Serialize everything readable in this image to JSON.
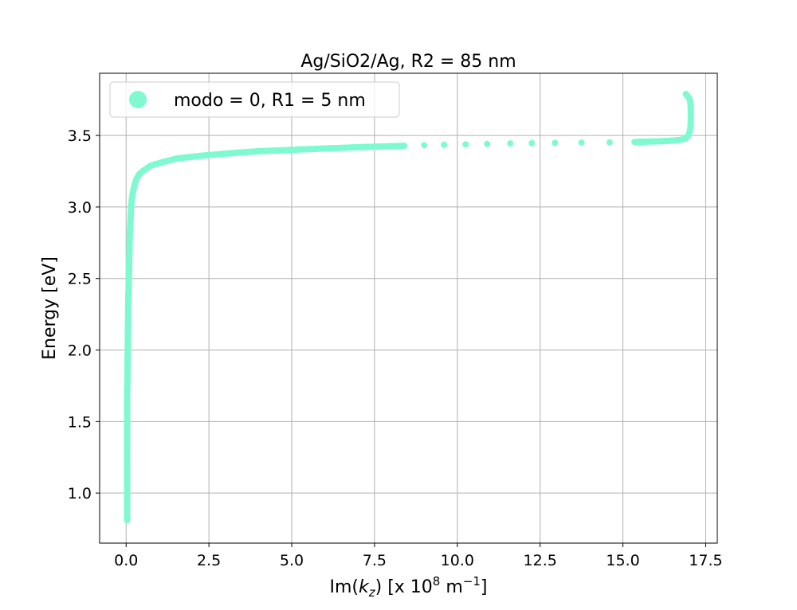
{
  "chart_data": {
    "type": "scatter",
    "title": "Ag/SiO2/Ag, R2 = 85 nm",
    "xlabel_parts": {
      "prefix": "Im(",
      "k": "k",
      "sub": "z",
      "mid": ") [x 10",
      "exp": "8",
      "unit": " m",
      "unit_exp": "−1",
      "suffix": "]"
    },
    "ylabel": "Energy [eV]",
    "xlim": [
      -0.8,
      17.85
    ],
    "ylim": [
      0.65,
      3.935
    ],
    "xticks": [
      0.0,
      2.5,
      5.0,
      7.5,
      10.0,
      12.5,
      15.0,
      17.5
    ],
    "xtick_labels": [
      "0.0",
      "2.5",
      "5.0",
      "7.5",
      "10.0",
      "12.5",
      "15.0",
      "17.5"
    ],
    "yticks": [
      1.0,
      1.5,
      2.0,
      2.5,
      3.0,
      3.5
    ],
    "ytick_labels": [
      "1.0",
      "1.5",
      "2.0",
      "2.5",
      "3.0",
      "3.5"
    ],
    "grid": true,
    "legend_position": "upper-left",
    "series": [
      {
        "name": "modo = 0, R1 = 5 nm",
        "color": "#7ffad0",
        "points": [
          [
            0.03,
            0.81
          ],
          [
            0.03,
            0.9
          ],
          [
            0.03,
            1.0
          ],
          [
            0.03,
            1.1
          ],
          [
            0.03,
            1.2
          ],
          [
            0.03,
            1.3
          ],
          [
            0.03,
            1.4
          ],
          [
            0.03,
            1.5
          ],
          [
            0.03,
            1.6
          ],
          [
            0.03,
            1.7
          ],
          [
            0.04,
            1.8
          ],
          [
            0.04,
            1.9
          ],
          [
            0.05,
            2.0
          ],
          [
            0.05,
            2.1
          ],
          [
            0.06,
            2.2
          ],
          [
            0.06,
            2.3
          ],
          [
            0.07,
            2.4
          ],
          [
            0.08,
            2.5
          ],
          [
            0.09,
            2.6
          ],
          [
            0.1,
            2.7
          ],
          [
            0.11,
            2.8
          ],
          [
            0.13,
            2.9
          ],
          [
            0.15,
            3.0
          ],
          [
            0.18,
            3.07
          ],
          [
            0.22,
            3.12
          ],
          [
            0.26,
            3.16
          ],
          [
            0.32,
            3.2
          ],
          [
            0.4,
            3.23
          ],
          [
            0.5,
            3.25
          ],
          [
            0.62,
            3.27
          ],
          [
            0.75,
            3.29
          ],
          [
            0.9,
            3.3
          ],
          [
            1.05,
            3.31
          ],
          [
            1.2,
            3.32
          ],
          [
            1.38,
            3.33
          ],
          [
            1.55,
            3.34
          ],
          [
            1.75,
            3.345
          ],
          [
            1.95,
            3.35
          ],
          [
            2.15,
            3.355
          ],
          [
            2.35,
            3.36
          ],
          [
            2.6,
            3.365
          ],
          [
            2.85,
            3.37
          ],
          [
            3.1,
            3.375
          ],
          [
            3.4,
            3.38
          ],
          [
            3.7,
            3.385
          ],
          [
            4.0,
            3.39
          ],
          [
            4.35,
            3.393
          ],
          [
            4.7,
            3.396
          ],
          [
            5.05,
            3.4
          ],
          [
            5.45,
            3.404
          ],
          [
            5.9,
            3.408
          ],
          [
            6.35,
            3.412
          ],
          [
            6.8,
            3.416
          ],
          [
            7.3,
            3.42
          ],
          [
            7.85,
            3.424
          ],
          [
            8.4,
            3.428
          ],
          [
            9.0,
            3.432
          ],
          [
            9.6,
            3.435
          ],
          [
            10.25,
            3.438
          ],
          [
            10.9,
            3.441
          ],
          [
            11.6,
            3.444
          ],
          [
            12.25,
            3.446
          ],
          [
            12.95,
            3.448
          ],
          [
            13.75,
            3.45
          ],
          [
            14.6,
            3.452
          ],
          [
            15.35,
            3.455
          ],
          [
            15.9,
            3.458
          ],
          [
            16.3,
            3.461
          ],
          [
            16.55,
            3.465
          ],
          [
            16.75,
            3.47
          ],
          [
            16.9,
            3.48
          ],
          [
            16.98,
            3.5
          ],
          [
            17.02,
            3.53
          ],
          [
            17.04,
            3.56
          ],
          [
            17.05,
            3.6
          ],
          [
            17.05,
            3.64
          ],
          [
            17.05,
            3.68
          ],
          [
            17.04,
            3.72
          ],
          [
            17.02,
            3.75
          ],
          [
            16.97,
            3.77
          ],
          [
            16.9,
            3.79
          ]
        ]
      }
    ]
  }
}
